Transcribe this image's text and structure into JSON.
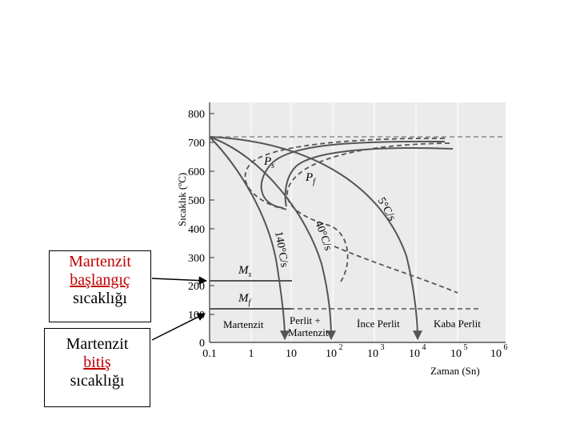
{
  "callouts": {
    "ms": {
      "line1": "Martenzit",
      "line2": "başlangıç",
      "line3": "sıcaklığı"
    },
    "mf": {
      "line1": "Martenzit",
      "line2": "bitiş",
      "line3": "sıcaklığı"
    }
  },
  "diagram": {
    "ylabel": "Sıcaklık (ºC)",
    "xlabel": "Zaman (Sn)",
    "y_ticks": [
      "0",
      "100",
      "200",
      "300",
      "400",
      "500",
      "600",
      "700",
      "800"
    ],
    "x_ticks": {
      "t0": "0.1",
      "t1": "1",
      "t2": "10",
      "t3": "10",
      "t3e": "2",
      "t4": "10",
      "t4e": "3",
      "t5": "10",
      "t5e": "4",
      "t6": "10",
      "t6e": "5",
      "t7": "10",
      "t7e": "6"
    },
    "labels": {
      "ps": "P",
      "ps_sub": "s",
      "pf": "P",
      "pf_sub": "f",
      "ms": "M",
      "ms_sub": "s",
      "mf": "M",
      "mf_sub": "f",
      "rate_5": "5°C/s",
      "rate_40": "40°C/s",
      "rate_140": "140°C/s"
    },
    "regions": {
      "martenzit": "Martenzit",
      "perlit_plus_1": "Perlit +",
      "perlit_plus_2": "Martenzit",
      "ince_perlit": "İnce Perlit",
      "kaba_perlit": "Kaba Perlit"
    },
    "colors": {
      "plot_bg": "#ebebeb",
      "curve": "#555555",
      "dashed": "#555555",
      "callout_red": "#c00000"
    }
  }
}
